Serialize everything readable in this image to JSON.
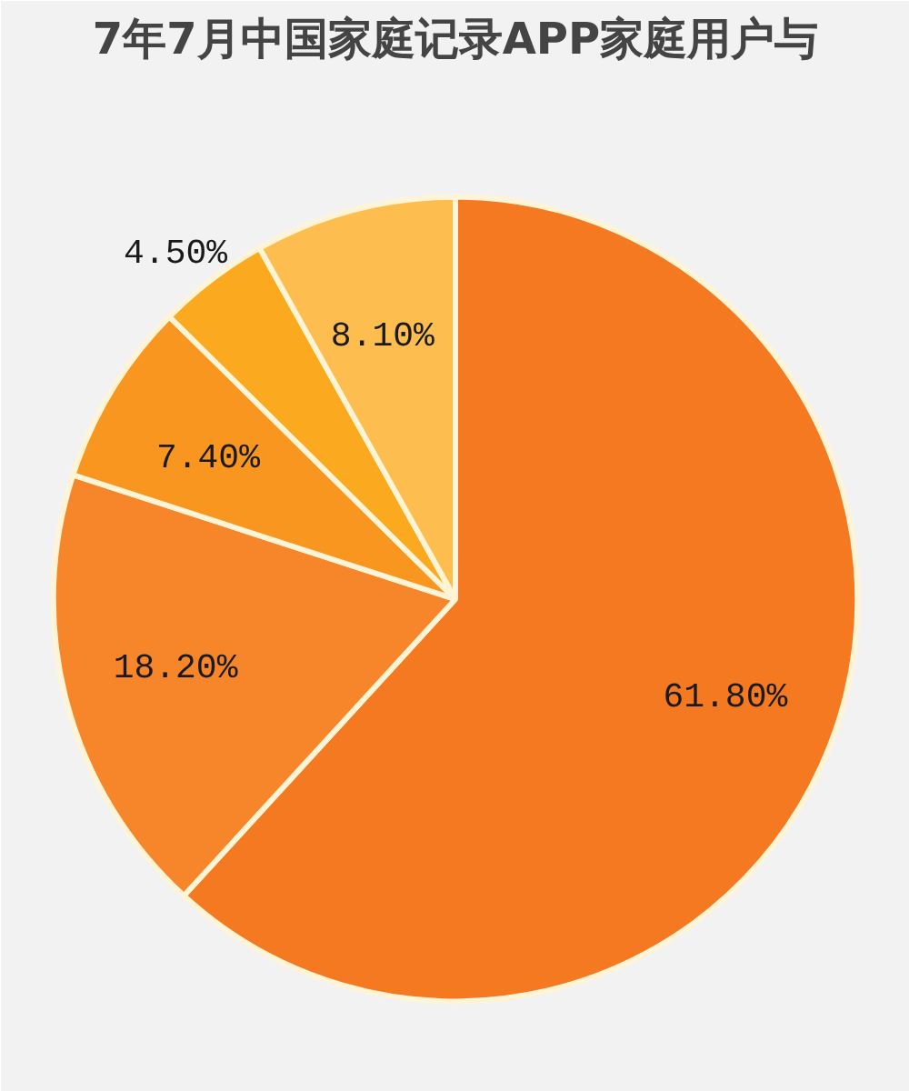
{
  "chart_data": {
    "type": "pie",
    "title": "7年7月中国家庭记录APP家庭用户与",
    "categories": [
      null,
      null,
      null,
      null,
      null
    ],
    "values": [
      61.8,
      18.2,
      7.4,
      4.5,
      8.1
    ],
    "colors": [
      "#f47920",
      "#f7862b",
      "#f8961f",
      "#fbaa1f",
      "#fdbd4f"
    ],
    "value_labels": [
      "61.80%",
      "18.20%",
      "7.40%",
      "4.50%",
      "8.10%"
    ]
  }
}
